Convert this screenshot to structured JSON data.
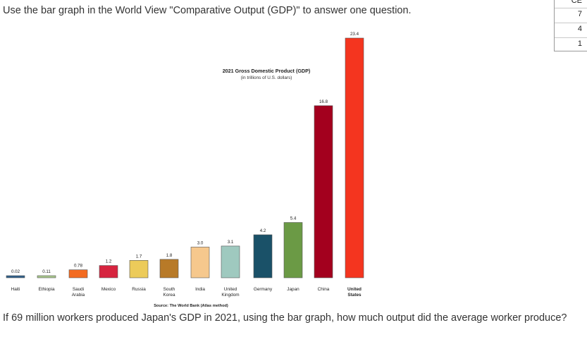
{
  "question_top": "Use the bar graph in the World View \"Comparative Output (GDP)\" to answer one question.",
  "question_bottom": "If 69 million workers produced Japan's GDP in 2021, using the bar graph, how much output did the average worker produce?",
  "side_panel": {
    "header": "CE",
    "rows": [
      "7",
      "4",
      "1"
    ]
  },
  "chart_data": {
    "type": "bar",
    "title": "2021 Gross Domestic Product (GDP)",
    "subtitle": "(in trillions of U.S. dollars)",
    "source": "Source: The World Bank (Atlas method)",
    "xlabel": "",
    "ylabel": "",
    "ylim": [
      0,
      23.4
    ],
    "grid": false,
    "categories": [
      {
        "label": "Haiti",
        "label2": "",
        "bold": false
      },
      {
        "label": "Ethiopia",
        "label2": "",
        "bold": false
      },
      {
        "label": "Saudi",
        "label2": "Arabia",
        "bold": false
      },
      {
        "label": "Mexico",
        "label2": "",
        "bold": false
      },
      {
        "label": "Russia",
        "label2": "",
        "bold": false
      },
      {
        "label": "South",
        "label2": "Korea",
        "bold": false
      },
      {
        "label": "India",
        "label2": "",
        "bold": false
      },
      {
        "label": "United",
        "label2": "Kingdom",
        "bold": false
      },
      {
        "label": "Germany",
        "label2": "",
        "bold": false
      },
      {
        "label": "Japan",
        "label2": "",
        "bold": false
      },
      {
        "label": "China",
        "label2": "",
        "bold": false
      },
      {
        "label": "United",
        "label2": "States",
        "bold": true
      }
    ],
    "values": [
      0.02,
      0.11,
      0.78,
      1.2,
      1.7,
      1.8,
      3.0,
      3.1,
      4.2,
      5.4,
      16.8,
      23.4
    ],
    "value_labels": [
      "0.02",
      "0.11",
      "0.78",
      "1.2",
      "1.7",
      "1.8",
      "3.0",
      "3.1",
      "4.2",
      "5.4",
      "16.8",
      "23.4"
    ],
    "colors": [
      "#2f5f8a",
      "#a9c98d",
      "#f36b21",
      "#d6243f",
      "#eccb5a",
      "#b87a28",
      "#f6c88d",
      "#9fc9bf",
      "#1a5168",
      "#6b9a45",
      "#a3001e",
      "#f4351f"
    ]
  }
}
